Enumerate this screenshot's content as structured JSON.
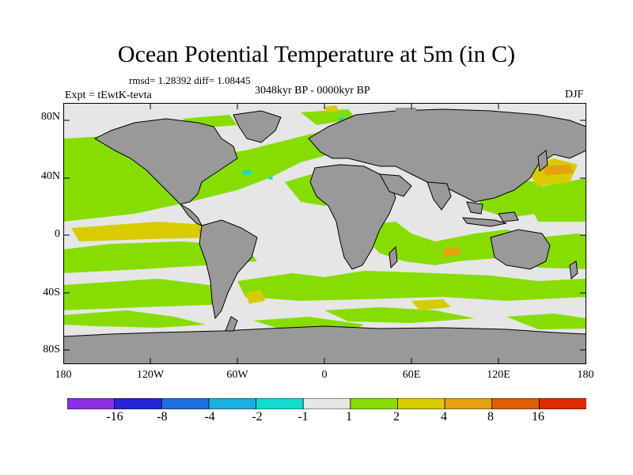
{
  "title": "Ocean Potential Temperature at 5m (in C)",
  "stats": "rmsd= 1.28392 diff= 1.08445",
  "period": "3048kyr BP - 0000kyr BP",
  "experiment": "Expt = tEwtK-tevta",
  "season": "DJF",
  "map": {
    "lat_labels": [
      "80N",
      "40N",
      "0",
      "40S",
      "80S"
    ],
    "lon_labels": [
      "180",
      "120W",
      "60W",
      "0",
      "60E",
      "120E",
      "180"
    ]
  },
  "colorbar": {
    "labels": [
      "-16",
      "-8",
      "-4",
      "-2",
      "-1",
      "1",
      "2",
      "4",
      "8",
      "16"
    ],
    "colors": [
      "#8b2ee6",
      "#2626d8",
      "#1e6fe0",
      "#18b0e0",
      "#10ddd0",
      "#e6e6e6",
      "#88dd00",
      "#d8cc00",
      "#e6a010",
      "#e06000",
      "#e02a00"
    ]
  },
  "colors": {
    "land": "#999999",
    "near_zero": "#e6e6e6",
    "warm_small": "#88dd00",
    "warm_mid": "#d8cc00",
    "warm_large": "#e6a010",
    "cold": "#10ddd0"
  }
}
